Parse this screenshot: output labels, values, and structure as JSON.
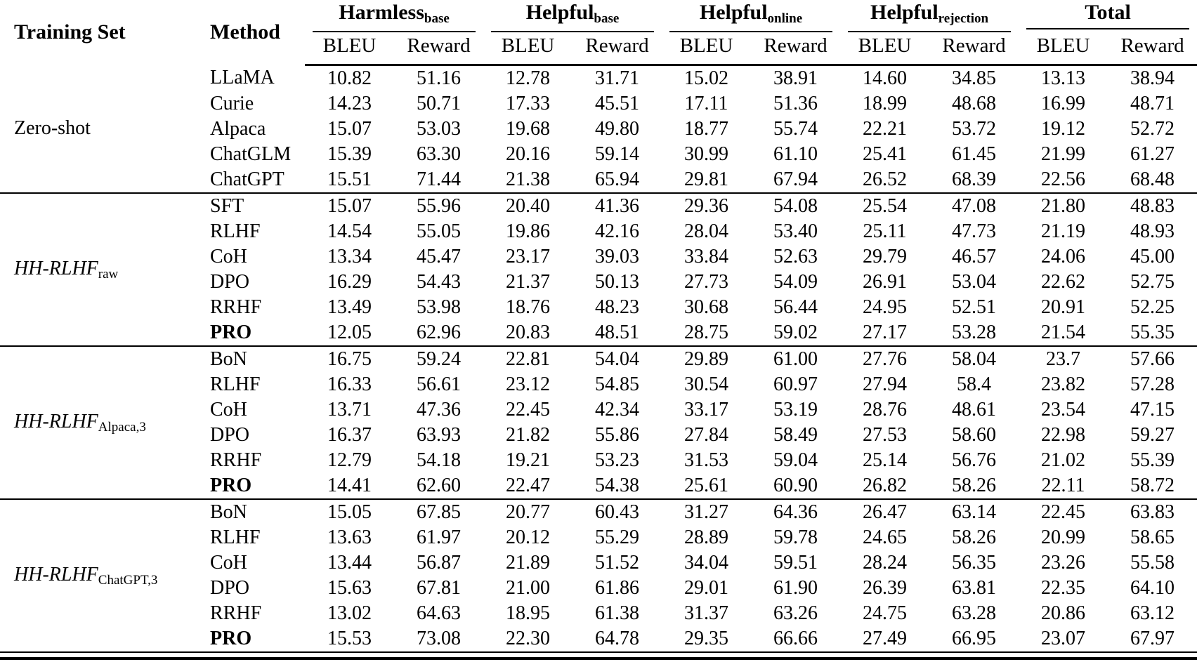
{
  "table": {
    "header": {
      "training_set": "Training Set",
      "method": "Method",
      "groups": [
        {
          "label": "Harmless",
          "subscript": "base"
        },
        {
          "label": "Helpful",
          "subscript": "base"
        },
        {
          "label": "Helpful",
          "subscript": "online"
        },
        {
          "label": "Helpful",
          "subscript": "rejection"
        },
        {
          "label": "Total",
          "subscript": ""
        }
      ],
      "metrics": [
        "BLEU",
        "Reward"
      ]
    },
    "sections": [
      {
        "training_set": {
          "label": "Zero-shot",
          "subscript": "",
          "italic": false
        },
        "rows": [
          {
            "method": "LLaMA",
            "bold": false,
            "values": [
              "10.82",
              "51.16",
              "12.78",
              "31.71",
              "15.02",
              "38.91",
              "14.60",
              "34.85",
              "13.13",
              "38.94"
            ]
          },
          {
            "method": "Curie",
            "bold": false,
            "values": [
              "14.23",
              "50.71",
              "17.33",
              "45.51",
              "17.11",
              "51.36",
              "18.99",
              "48.68",
              "16.99",
              "48.71"
            ]
          },
          {
            "method": "Alpaca",
            "bold": false,
            "values": [
              "15.07",
              "53.03",
              "19.68",
              "49.80",
              "18.77",
              "55.74",
              "22.21",
              "53.72",
              "19.12",
              "52.72"
            ]
          },
          {
            "method": "ChatGLM",
            "bold": false,
            "values": [
              "15.39",
              "63.30",
              "20.16",
              "59.14",
              "30.99",
              "61.10",
              "25.41",
              "61.45",
              "21.99",
              "61.27"
            ]
          },
          {
            "method": "ChatGPT",
            "bold": false,
            "values": [
              "15.51",
              "71.44",
              "21.38",
              "65.94",
              "29.81",
              "67.94",
              "26.52",
              "68.39",
              "22.56",
              "68.48"
            ]
          }
        ]
      },
      {
        "training_set": {
          "label": "HH-RLHF",
          "subscript": "raw",
          "italic": true
        },
        "rows": [
          {
            "method": "SFT",
            "bold": false,
            "values": [
              "15.07",
              "55.96",
              "20.40",
              "41.36",
              "29.36",
              "54.08",
              "25.54",
              "47.08",
              "21.80",
              "48.83"
            ]
          },
          {
            "method": "RLHF",
            "bold": false,
            "values": [
              "14.54",
              "55.05",
              "19.86",
              "42.16",
              "28.04",
              "53.40",
              "25.11",
              "47.73",
              "21.19",
              "48.93"
            ]
          },
          {
            "method": "CoH",
            "bold": false,
            "values": [
              "13.34",
              "45.47",
              "23.17",
              "39.03",
              "33.84",
              "52.63",
              "29.79",
              "46.57",
              "24.06",
              "45.00"
            ]
          },
          {
            "method": "DPO",
            "bold": false,
            "values": [
              "16.29",
              "54.43",
              "21.37",
              "50.13",
              "27.73",
              "54.09",
              "26.91",
              "53.04",
              "22.62",
              "52.75"
            ]
          },
          {
            "method": "RRHF",
            "bold": false,
            "values": [
              "13.49",
              "53.98",
              "18.76",
              "48.23",
              "30.68",
              "56.44",
              "24.95",
              "52.51",
              "20.91",
              "52.25"
            ]
          },
          {
            "method": "PRO",
            "bold": true,
            "values": [
              "12.05",
              "62.96",
              "20.83",
              "48.51",
              "28.75",
              "59.02",
              "27.17",
              "53.28",
              "21.54",
              "55.35"
            ]
          }
        ]
      },
      {
        "training_set": {
          "label": "HH-RLHF",
          "subscript": "Alpaca,3",
          "italic": true
        },
        "rows": [
          {
            "method": "BoN",
            "bold": false,
            "values": [
              "16.75",
              "59.24",
              "22.81",
              "54.04",
              "29.89",
              "61.00",
              "27.76",
              "58.04",
              "23.7",
              "57.66"
            ]
          },
          {
            "method": "RLHF",
            "bold": false,
            "values": [
              "16.33",
              "56.61",
              "23.12",
              "54.85",
              "30.54",
              "60.97",
              "27.94",
              "58.4",
              "23.82",
              "57.28"
            ]
          },
          {
            "method": "CoH",
            "bold": false,
            "values": [
              "13.71",
              "47.36",
              "22.45",
              "42.34",
              "33.17",
              "53.19",
              "28.76",
              "48.61",
              "23.54",
              "47.15"
            ]
          },
          {
            "method": "DPO",
            "bold": false,
            "values": [
              "16.37",
              "63.93",
              "21.82",
              "55.86",
              "27.84",
              "58.49",
              "27.53",
              "58.60",
              "22.98",
              "59.27"
            ]
          },
          {
            "method": "RRHF",
            "bold": false,
            "values": [
              "12.79",
              "54.18",
              "19.21",
              "53.23",
              "31.53",
              "59.04",
              "25.14",
              "56.76",
              "21.02",
              "55.39"
            ]
          },
          {
            "method": "PRO",
            "bold": true,
            "values": [
              "14.41",
              "62.60",
              "22.47",
              "54.38",
              "25.61",
              "60.90",
              "26.82",
              "58.26",
              "22.11",
              "58.72"
            ]
          }
        ]
      },
      {
        "training_set": {
          "label": "HH-RLHF",
          "subscript": "ChatGPT,3",
          "italic": true
        },
        "rows": [
          {
            "method": "BoN",
            "bold": false,
            "values": [
              "15.05",
              "67.85",
              "20.77",
              "60.43",
              "31.27",
              "64.36",
              "26.47",
              "63.14",
              "22.45",
              "63.83"
            ]
          },
          {
            "method": "RLHF",
            "bold": false,
            "values": [
              "13.63",
              "61.97",
              "20.12",
              "55.29",
              "28.89",
              "59.78",
              "24.65",
              "58.26",
              "20.99",
              "58.65"
            ]
          },
          {
            "method": "CoH",
            "bold": false,
            "values": [
              "13.44",
              "56.87",
              "21.89",
              "51.52",
              "34.04",
              "59.51",
              "28.24",
              "56.35",
              "23.26",
              "55.58"
            ]
          },
          {
            "method": "DPO",
            "bold": false,
            "values": [
              "15.63",
              "67.81",
              "21.00",
              "61.86",
              "29.01",
              "61.90",
              "26.39",
              "63.81",
              "22.35",
              "64.10"
            ]
          },
          {
            "method": "RRHF",
            "bold": false,
            "values": [
              "13.02",
              "64.63",
              "18.95",
              "61.38",
              "31.37",
              "63.26",
              "24.75",
              "63.28",
              "20.86",
              "63.12"
            ]
          },
          {
            "method": "PRO",
            "bold": true,
            "values": [
              "15.53",
              "73.08",
              "22.30",
              "64.78",
              "29.35",
              "66.66",
              "27.49",
              "66.95",
              "23.07",
              "67.97"
            ]
          }
        ]
      }
    ]
  }
}
